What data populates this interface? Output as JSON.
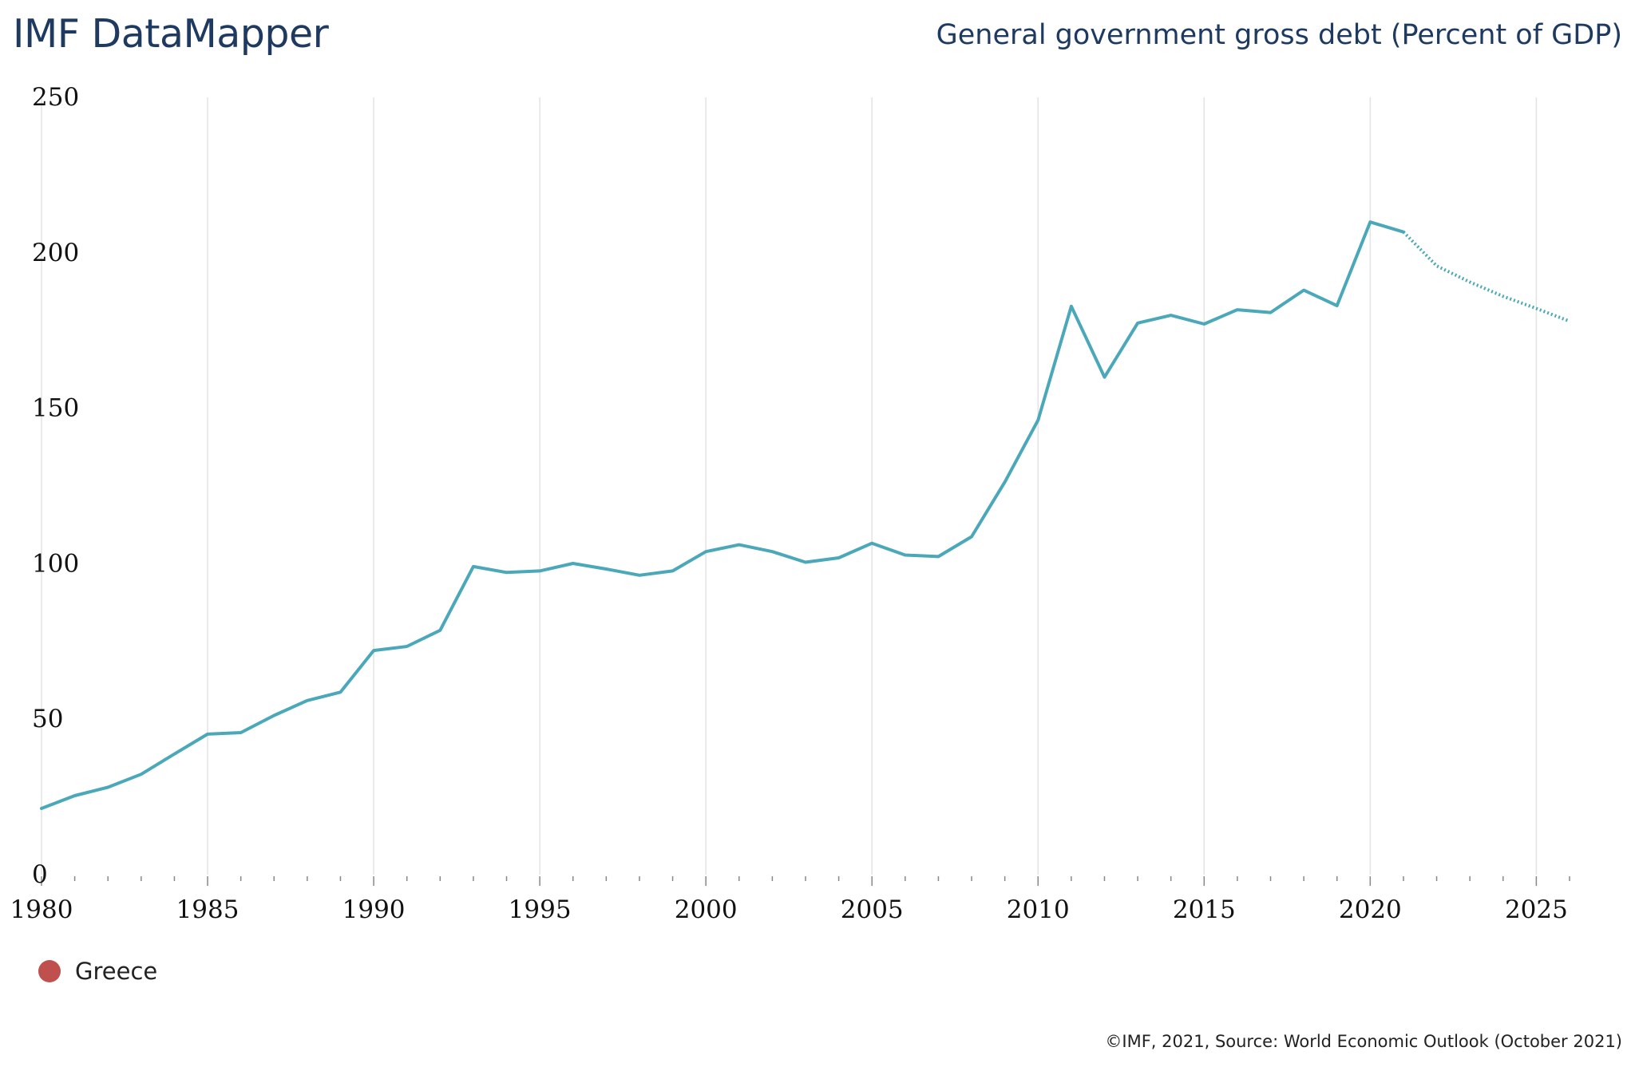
{
  "header": {
    "brand": "IMF DataMapper",
    "title": "General government gross debt (Percent of GDP)"
  },
  "footer": {
    "credits": "©IMF, 2021, Source: World Economic Outlook (October 2021)"
  },
  "colors": {
    "series": "#4aa8b8",
    "legend_swatch": "#c0504d",
    "grid": "#e3e3e3",
    "tick_mark": "#888888"
  },
  "chart_data": {
    "type": "line",
    "title": "General government gross debt (Percent of GDP)",
    "xlabel": "",
    "ylabel": "",
    "xlim": [
      1980,
      2026
    ],
    "ylim": [
      0,
      250
    ],
    "x_ticks": [
      1980,
      1985,
      1990,
      1995,
      2000,
      2005,
      2010,
      2015,
      2020,
      2025
    ],
    "y_ticks": [
      0,
      50,
      100,
      150,
      200,
      250
    ],
    "grid": "vertical",
    "legend_position": "bottom-left",
    "forecast_start": 2021,
    "series": [
      {
        "name": "Greece",
        "x": [
          1980,
          1981,
          1982,
          1983,
          1984,
          1985,
          1986,
          1987,
          1988,
          1989,
          1990,
          1991,
          1992,
          1993,
          1994,
          1995,
          1996,
          1997,
          1998,
          1999,
          2000,
          2001,
          2002,
          2003,
          2004,
          2005,
          2006,
          2007,
          2008,
          2009,
          2010,
          2011,
          2012,
          2013,
          2014,
          2015,
          2016,
          2017,
          2018,
          2019,
          2020,
          2021,
          2022,
          2023,
          2024,
          2025,
          2026
        ],
        "values": [
          21.3,
          25.4,
          28.1,
          32.3,
          38.8,
          45.2,
          45.7,
          51.2,
          56.0,
          58.7,
          72.1,
          73.4,
          78.6,
          99.1,
          97.2,
          97.7,
          100.1,
          98.3,
          96.3,
          97.7,
          103.9,
          106.1,
          103.9,
          100.5,
          101.9,
          106.6,
          102.8,
          102.3,
          108.7,
          126.3,
          146.2,
          182.8,
          160.0,
          177.4,
          179.9,
          177.1,
          181.7,
          180.8,
          188.0,
          183.0,
          209.9,
          206.7,
          195.8,
          190.6,
          186.0,
          182.1,
          178.0
        ]
      }
    ]
  }
}
